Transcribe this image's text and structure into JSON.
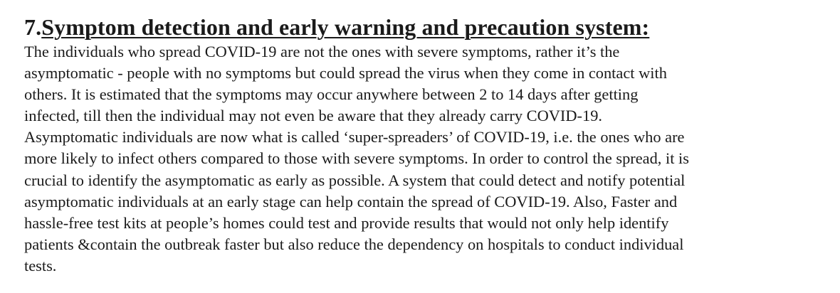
{
  "section": {
    "number": "7.",
    "title": "Symptom detection and early warning and precaution system:",
    "lines": [
      "The individuals who spread COVID-19 are not the ones with severe symptoms, rather it’s the",
      "asymptomatic - people with no symptoms but could spread the virus when they come in contact with",
      "others. It is estimated that the symptoms may occur anywhere between 2 to 14 days after getting",
      "infected, till then the individual may not even be aware that they already carry COVID-19.",
      "Asymptomatic individuals are now what is called ‘super-spreaders’ of COVID-19, i.e. the ones who are",
      "more likely to infect others compared to those with severe symptoms. In order to control the spread, it is",
      "crucial to identify the asymptomatic as early as possible. A system that could detect and notify potential",
      "asymptomatic individuals at an early stage can help contain the spread of COVID-19. Also, Faster and",
      "hassle-free test kits at people’s homes could test and provide results that would not only help identify",
      "patients &contain the outbreak faster but also reduce the dependency on hospitals to conduct individual",
      "tests."
    ]
  }
}
